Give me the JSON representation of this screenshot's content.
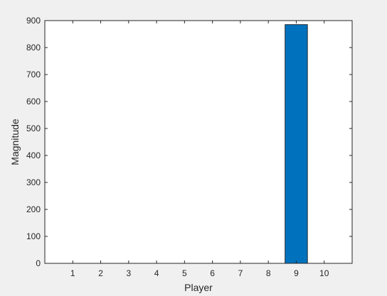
{
  "chart_data": {
    "type": "bar",
    "categories": [
      "1",
      "2",
      "3",
      "4",
      "5",
      "6",
      "7",
      "8",
      "9",
      "10"
    ],
    "values": [
      0,
      0,
      0,
      0,
      0,
      0,
      0,
      0,
      885,
      0
    ],
    "xlabel": "Player",
    "ylabel": "Magnitude",
    "xlim": [
      0,
      11
    ],
    "ylim": [
      0,
      900
    ],
    "yticks": [
      0,
      100,
      200,
      300,
      400,
      500,
      600,
      700,
      800,
      900
    ],
    "grid": false,
    "bar_color": "#0072bd"
  }
}
